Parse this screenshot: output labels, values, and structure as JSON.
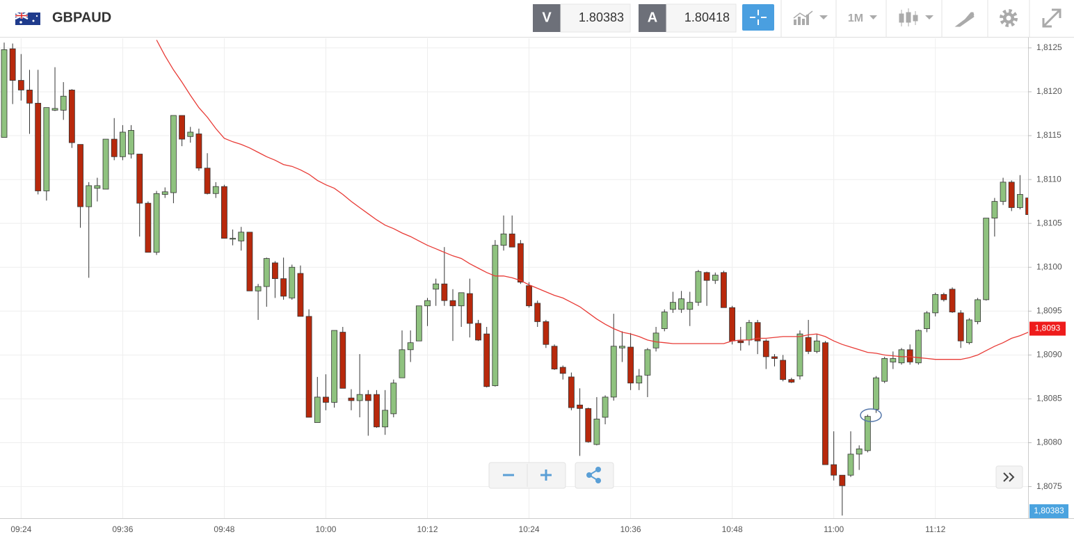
{
  "toolbar": {
    "symbol": "GBPAUD",
    "bid_tag": "V",
    "bid": "1.80383",
    "ask_tag": "A",
    "ask": "1.80418",
    "timeframe": "1M"
  },
  "chart_data": {
    "type": "candlestick",
    "categories": [
      null,
      null,
      "09:24",
      null,
      null,
      null,
      null,
      null,
      null,
      null,
      null,
      null,
      null,
      null,
      "09:36",
      null,
      null,
      null,
      null,
      null,
      null,
      null,
      null,
      null,
      null,
      null,
      "09:48",
      null,
      null,
      null,
      null,
      null,
      null,
      null,
      null,
      null,
      null,
      null,
      "10:00",
      null,
      null,
      null,
      null,
      null,
      null,
      null,
      null,
      null,
      null,
      null,
      "10:12",
      null,
      null,
      null,
      null,
      null,
      null,
      null,
      null,
      null,
      null,
      null,
      "10:24",
      null,
      null,
      null,
      null,
      null,
      null,
      null,
      null,
      null,
      null,
      null,
      "10:36",
      null,
      null,
      null,
      null,
      null,
      null,
      null,
      null,
      null,
      null,
      null,
      "10:48",
      null,
      null,
      null,
      null,
      null,
      null,
      null,
      null,
      null,
      null,
      null,
      "11:00",
      null,
      null,
      null,
      null,
      null,
      null,
      null,
      null,
      null,
      null,
      null,
      "11:12",
      null,
      null,
      null,
      null,
      null,
      null,
      null,
      null,
      null,
      null,
      null
    ],
    "open": [
      1.81148,
      1.81249,
      1.81213,
      1.81202,
      1.81187,
      1.81087,
      1.81179,
      1.81179,
      1.81202,
      1.8114,
      1.81069,
      1.8109,
      1.81089,
      1.81146,
      1.81126,
      1.81129,
      1.81129,
      1.81073,
      1.81017,
      1.81083,
      1.81085,
      1.81173,
      1.81149,
      1.81152,
      1.81113,
      1.81084,
      1.81092,
      1.81032,
      1.8103,
      1.8104,
      1.80973,
      1.80978,
      1.81005,
      1.80987,
      1.80965,
      1.80993,
      1.80944,
      1.80823,
      1.80852,
      1.80846,
      1.80926,
      1.80851,
      1.80848,
      1.80855,
      1.80855,
      1.80818,
      1.80833,
      1.80874,
      1.80906,
      1.80916,
      1.80956,
      1.80975,
      1.80981,
      1.80962,
      1.80956,
      1.8097,
      1.80936,
      1.80924,
      1.80865,
      1.81025,
      1.81038,
      1.81027,
      1.80979,
      1.80959,
      1.80938,
      1.8091,
      1.80886,
      1.80875,
      1.80843,
      1.80839,
      1.80798,
      1.80829,
      1.80852,
      1.80908,
      1.80909,
      1.80868,
      1.80877,
      1.80908,
      1.8093,
      1.80952,
      1.80952,
      1.80952,
      1.8096,
      1.80994,
      1.80985,
      1.80994,
      1.80954,
      1.80916,
      1.80917,
      1.80937,
      1.80916,
      1.80898,
      1.80894,
      1.80872,
      1.80876,
      1.8092,
      1.80904,
      1.80914,
      1.80775,
      1.80763,
      1.80763,
      1.80787,
      1.80791,
      1.80838,
      1.8087,
      1.80892,
      1.80891,
      1.80906,
      1.80891,
      1.8093,
      1.80948,
      1.80969,
      1.80975,
      1.80948,
      1.80914,
      1.80938,
      1.80963,
      1.81056,
      1.81075,
      1.81097,
      1.81068,
      1.81079
    ],
    "high": [
      1.81256,
      1.81255,
      1.81243,
      1.81225,
      1.81225,
      1.81182,
      1.81228,
      1.81211,
      1.81203,
      1.8114,
      1.81097,
      1.81102,
      1.81146,
      1.8117,
      1.81162,
      1.81162,
      1.81129,
      1.81075,
      1.81087,
      1.81091,
      1.81173,
      1.81173,
      1.8116,
      1.81158,
      1.8113,
      1.81097,
      1.81094,
      1.81043,
      1.81046,
      1.8104,
      1.80981,
      1.81011,
      1.81007,
      1.81011,
      1.81003,
      1.81002,
      1.80952,
      1.80875,
      1.80878,
      1.80928,
      1.80932,
      1.80861,
      1.80901,
      1.8086,
      1.8086,
      1.8086,
      1.80872,
      1.80928,
      1.80928,
      1.80956,
      1.80965,
      1.80987,
      1.81023,
      1.80975,
      1.80971,
      1.80987,
      1.8094,
      1.80932,
      1.81031,
      1.81059,
      1.81059,
      1.81031,
      1.80983,
      1.80962,
      1.8094,
      1.80912,
      1.80888,
      1.8088,
      1.80862,
      1.8084,
      1.80852,
      1.80854,
      1.80947,
      1.80927,
      1.80925,
      1.80884,
      1.80908,
      1.80932,
      1.80952,
      1.80972,
      1.80973,
      1.80972,
      1.80997,
      1.80995,
      1.80994,
      1.80996,
      1.80956,
      1.80932,
      1.8094,
      1.8094,
      1.80918,
      1.80901,
      1.809,
      1.80874,
      1.80928,
      1.8094,
      1.80924,
      1.80916,
      1.80813,
      1.80763,
      1.80813,
      1.80797,
      1.80832,
      1.80876,
      1.80898,
      1.80904,
      1.80908,
      1.80912,
      1.80929,
      1.8095,
      1.80971,
      1.80971,
      1.80977,
      1.80951,
      1.80942,
      1.80965,
      1.81056,
      1.81079,
      1.81102,
      1.81099,
      1.81105,
      1.811
    ],
    "low": [
      1.81148,
      1.81186,
      1.8119,
      1.81152,
      1.81083,
      1.81076,
      1.81178,
      1.81168,
      1.81136,
      1.81045,
      1.80988,
      1.81075,
      1.81089,
      1.81122,
      1.81122,
      1.81124,
      1.81035,
      1.81017,
      1.81014,
      1.81079,
      1.81073,
      1.81138,
      1.81142,
      1.8111,
      1.81083,
      1.81079,
      1.81033,
      1.81025,
      1.81019,
      1.80973,
      1.8094,
      1.80955,
      1.80965,
      1.80963,
      1.80963,
      1.80944,
      1.80829,
      1.80823,
      1.80837,
      1.8084,
      1.80862,
      1.80837,
      1.80829,
      1.80808,
      1.80817,
      1.80809,
      1.80829,
      1.80874,
      1.80892,
      1.80916,
      1.80933,
      1.80956,
      1.80956,
      1.80916,
      1.80932,
      1.8092,
      1.80916,
      1.80863,
      1.80864,
      1.81019,
      1.81023,
      1.80981,
      1.80954,
      1.80932,
      1.80908,
      1.80883,
      1.80872,
      1.80837,
      1.80785,
      1.808,
      1.80797,
      1.80821,
      1.80848,
      1.80892,
      1.8086,
      1.8086,
      1.80852,
      1.80904,
      1.80927,
      1.80948,
      1.80948,
      1.80933,
      1.80956,
      1.80956,
      1.80981,
      1.80954,
      1.80912,
      1.80905,
      1.80911,
      1.80901,
      1.80884,
      1.80887,
      1.8087,
      1.80868,
      1.80872,
      1.80901,
      1.80902,
      1.80775,
      1.80757,
      1.80717,
      1.80761,
      1.80769,
      1.80789,
      1.80834,
      1.80868,
      1.80884,
      1.80889,
      1.80889,
      1.80889,
      1.80926,
      1.80944,
      1.80961,
      1.80948,
      1.80908,
      1.80912,
      1.80935,
      1.80962,
      1.81035,
      1.81071,
      1.81064,
      1.81066,
      1.81052
    ],
    "close": [
      1.81248,
      1.81213,
      1.81202,
      1.81187,
      1.81087,
      1.81182,
      1.81181,
      1.81195,
      1.81142,
      1.81069,
      1.81093,
      1.81093,
      1.81146,
      1.81126,
      1.81154,
      1.81156,
      1.81073,
      1.81017,
      1.81084,
      1.81086,
      1.81173,
      1.81146,
      1.81154,
      1.81113,
      1.81084,
      1.81092,
      1.81033,
      1.81033,
      1.8104,
      1.80973,
      1.80978,
      1.8101,
      1.80987,
      1.80967,
      1.81,
      1.80944,
      1.80829,
      1.80852,
      1.80846,
      1.80928,
      1.80862,
      1.80848,
      1.80855,
      1.80848,
      1.80818,
      1.80837,
      1.80868,
      1.80906,
      1.80914,
      1.80956,
      1.80962,
      1.80981,
      1.80962,
      1.80956,
      1.80971,
      1.80936,
      1.80917,
      1.80864,
      1.81025,
      1.81038,
      1.81023,
      1.80983,
      1.80956,
      1.80938,
      1.80912,
      1.80884,
      1.80879,
      1.8084,
      1.80839,
      1.80801,
      1.80827,
      1.80852,
      1.8091,
      1.8091,
      1.80868,
      1.80876,
      1.80906,
      1.80925,
      1.80949,
      1.8096,
      1.80964,
      1.8096,
      1.80995,
      1.80985,
      1.80991,
      1.80954,
      1.80916,
      1.80914,
      1.80937,
      1.80916,
      1.80898,
      1.80896,
      1.80872,
      1.80869,
      1.80924,
      1.80904,
      1.80916,
      1.80775,
      1.80763,
      1.80751,
      1.80787,
      1.80793,
      1.8083,
      1.80874,
      1.80896,
      1.80896,
      1.80906,
      1.80892,
      1.80928,
      1.80948,
      1.80969,
      1.80963,
      1.80949,
      1.80916,
      1.8094,
      1.80963,
      1.81056,
      1.81075,
      1.81097,
      1.81068,
      1.81083,
      1.8106
    ],
    "up_color": "#8fc27f",
    "down_color": "#b8290c",
    "moving_average": {
      "color": "#e83a35",
      "values": [
        null,
        null,
        null,
        null,
        null,
        null,
        null,
        null,
        null,
        null,
        null,
        null,
        null,
        null,
        null,
        null,
        null,
        null,
        1.81259,
        1.81241,
        1.81225,
        1.81211,
        1.81196,
        1.81182,
        1.81171,
        1.81158,
        1.81147,
        1.81143,
        1.8114,
        1.81136,
        1.81131,
        1.81126,
        1.81122,
        1.81117,
        1.81115,
        1.81111,
        1.81106,
        1.81099,
        1.81094,
        1.8109,
        1.81083,
        1.81075,
        1.81068,
        1.81061,
        1.81054,
        1.81048,
        1.81044,
        1.81039,
        1.81035,
        1.8103,
        1.81025,
        1.81021,
        1.81017,
        1.81013,
        1.8101,
        1.81004,
        1.80999,
        1.80994,
        1.8099,
        1.8099,
        1.80988,
        1.80985,
        1.8098,
        1.80976,
        1.80972,
        1.80968,
        1.80965,
        1.8096,
        1.80955,
        1.80948,
        1.80941,
        1.80935,
        1.8093,
        1.80926,
        1.80924,
        1.80921,
        1.80917,
        1.80915,
        1.80914,
        1.80913,
        1.80913,
        1.80913,
        1.80913,
        1.80913,
        1.80913,
        1.80913,
        1.80916,
        1.80917,
        1.80917,
        1.80919,
        1.80919,
        1.8092,
        1.80921,
        1.80921,
        1.80921,
        1.80923,
        1.80924,
        1.80921,
        1.80916,
        1.80912,
        1.80909,
        1.80906,
        1.80903,
        1.80902,
        1.809,
        1.80899,
        1.80898,
        1.80898,
        1.80897,
        1.80896,
        1.80895,
        1.80895,
        1.80895,
        1.80895,
        1.80897,
        1.809,
        1.80905,
        1.8091,
        1.80914,
        1.80919,
        1.80922,
        1.80926
      ]
    },
    "ma_last_label": {
      "value": 1.8093,
      "label": "1,8093"
    },
    "bid_price_label": "1,80383",
    "ylim": [
      1.80714,
      1.81261
    ],
    "yticks": [
      {
        "value": 1.8075,
        "label": "1,8075"
      },
      {
        "value": 1.808,
        "label": "1,8080"
      },
      {
        "value": 1.8085,
        "label": "1,8085"
      },
      {
        "value": 1.809,
        "label": "1,8090"
      },
      {
        "value": 1.8095,
        "label": "1,8095"
      },
      {
        "value": 1.81,
        "label": "1,8100"
      },
      {
        "value": 1.8105,
        "label": "1,8105"
      },
      {
        "value": 1.811,
        "label": "1,8110"
      },
      {
        "value": 1.8115,
        "label": "1,8115"
      },
      {
        "value": 1.812,
        "label": "1,8120"
      },
      {
        "value": 1.8125,
        "label": "1,8125"
      }
    ],
    "grid": true
  }
}
